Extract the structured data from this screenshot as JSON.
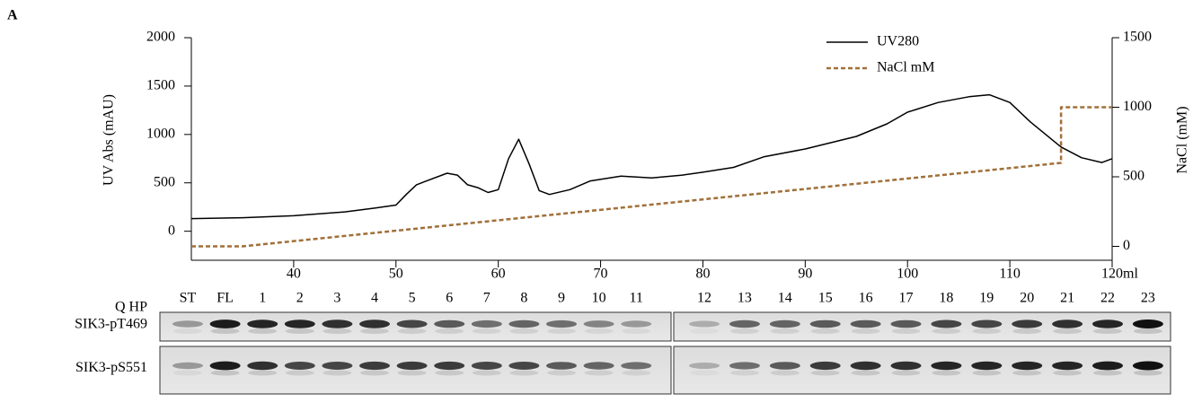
{
  "figure_label": "A",
  "chart_data": {
    "type": "line",
    "y_label": "UV Abs (mAU)",
    "y2_label": "NaCl (mM)",
    "x_label": "ml",
    "xlim": [
      30,
      120
    ],
    "xticks": [
      40,
      50,
      60,
      70,
      80,
      90,
      100,
      110,
      120
    ],
    "ylim": [
      -300,
      2000
    ],
    "yticks": [
      0,
      500,
      1000,
      1500,
      2000
    ],
    "y2lim": [
      -100,
      1500
    ],
    "y2ticks": [
      0,
      500,
      1000,
      1500
    ],
    "legend": "upper right",
    "series": [
      {
        "name": "UV280",
        "color": "#000000",
        "dash": false,
        "x": [
          30,
          35,
          40,
          45,
          48,
          50,
          51,
          52,
          53,
          55,
          56,
          57,
          58,
          59,
          60,
          61,
          62,
          63,
          64,
          65,
          67,
          69,
          72,
          75,
          78,
          80,
          83,
          86,
          90,
          95,
          98,
          100,
          103,
          106,
          108,
          110,
          112,
          115,
          117,
          119,
          120
        ],
        "values": [
          130,
          140,
          160,
          200,
          240,
          270,
          380,
          480,
          520,
          600,
          580,
          480,
          450,
          400,
          430,
          750,
          950,
          700,
          420,
          380,
          430,
          520,
          570,
          550,
          580,
          610,
          660,
          770,
          850,
          980,
          1110,
          1230,
          1330,
          1390,
          1410,
          1330,
          1130,
          870,
          760,
          710,
          750
        ]
      },
      {
        "name": "NaCl mM",
        "color": "#a0703a",
        "dash": true,
        "axis": "y2",
        "x": [
          30,
          35,
          115,
          115,
          120
        ],
        "values": [
          0,
          0,
          600,
          1000,
          1000
        ]
      }
    ]
  },
  "blot": {
    "row_header": "Q HP",
    "lanes": [
      "ST",
      "FL",
      "1",
      "2",
      "3",
      "4",
      "5",
      "6",
      "7",
      "8",
      "9",
      "10",
      "11",
      "12",
      "13",
      "14",
      "15",
      "16",
      "17",
      "18",
      "19",
      "20",
      "21",
      "22",
      "23"
    ],
    "rows": [
      "SIK3-pT469",
      "SIK3-pS551"
    ]
  }
}
